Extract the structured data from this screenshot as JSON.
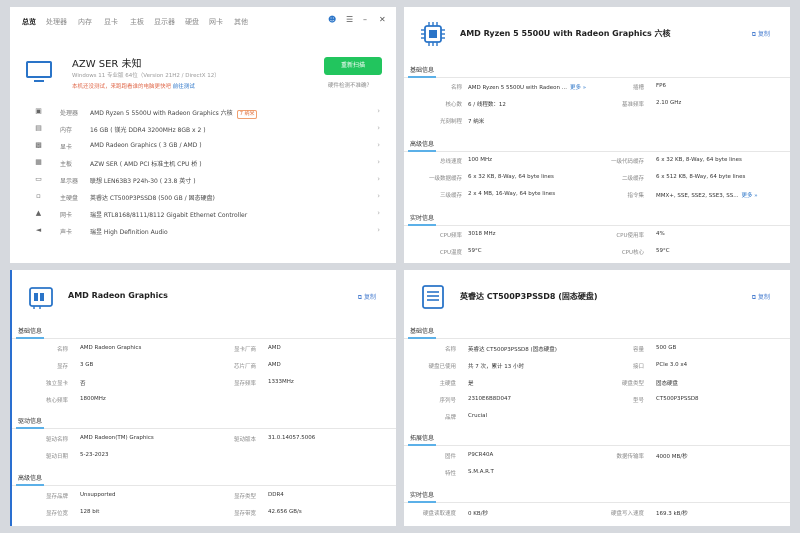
{
  "panel1": {
    "tabs": [
      "总览",
      "处理器",
      "内存",
      "显卡",
      "主板",
      "显示器",
      "硬盘",
      "网卡",
      "其他"
    ],
    "pc_name": "AZW SER 未知",
    "os": "Windows 11 专业版 64位（Version 21H2 / DirectX 12）",
    "warning": "本机还没测试，来跑跑看谁的电脑更快吧",
    "warning_link": "前往测试",
    "rescan_label": "重新扫描",
    "hwcheck": "硬件检测不准确？",
    "rows": [
      {
        "icon": "cpu-icon",
        "label": "处理器",
        "value": "AMD Ryzen 5 5500U with Radeon Graphics 六核",
        "badge": "7 纳米"
      },
      {
        "icon": "memory-icon",
        "label": "内存",
        "value": "16 GB ( 镁光 DDR4 3200MHz 8GB x 2 )"
      },
      {
        "icon": "gpu-icon",
        "label": "显卡",
        "value": "AMD Radeon Graphics ( 3 GB / AMD )"
      },
      {
        "icon": "motherboard-icon",
        "label": "主板",
        "value": "AZW SER ( AMD PCI 标准主机 CPU 桥 )"
      },
      {
        "icon": "display-icon",
        "label": "显示器",
        "value": "联想 LEN63B3 P24h-30 ( 23.8 英寸 )"
      },
      {
        "icon": "disk-icon",
        "label": "主硬盘",
        "value": "英睿达 CT500P3PSSD8 (500 GB / 固态硬盘)"
      },
      {
        "icon": "network-icon",
        "label": "网卡",
        "value": "瑞昱 RTL8168/8111/8112 Gigabit Ethernet Controller"
      },
      {
        "icon": "speaker-icon",
        "label": "声卡",
        "value": "瑞昱 High Definition Audio"
      }
    ]
  },
  "panel2": {
    "title": "AMD Ryzen 5 5500U with Radeon Graphics 六核",
    "copy": "复制",
    "sections": [
      {
        "title": "基础信息",
        "items": [
          {
            "k": "名称",
            "v": "AMD Ryzen 5 5500U with Radeon ...",
            "more": "更多 »"
          },
          {
            "k": "插槽",
            "v": "FP6"
          },
          {
            "k": "核心数",
            "v": "6 / 线程数：12"
          },
          {
            "k": "基准频率",
            "v": "2.10 GHz"
          },
          {
            "k": "光刻制程",
            "v": "7 纳米"
          }
        ]
      },
      {
        "title": "高级信息",
        "items": [
          {
            "k": "总线速度",
            "v": "100 MHz"
          },
          {
            "k": "一级代码缓存",
            "v": "6 x 32 KB, 8-Way, 64 byte lines"
          },
          {
            "k": "一级数据缓存",
            "v": "6 x 32 KB, 8-Way, 64 byte lines"
          },
          {
            "k": "二级缓存",
            "v": "6 x 512 KB, 8-Way, 64 byte lines"
          },
          {
            "k": "三级缓存",
            "v": "2 x 4 MB, 16-Way, 64 byte lines"
          },
          {
            "k": "指令集",
            "v": "MMX+, SSE, SSE2, SSE3, SS...",
            "more": "更多 »"
          }
        ]
      },
      {
        "title": "实时信息",
        "items": [
          {
            "k": "CPU频率",
            "v": "3018 MHz"
          },
          {
            "k": "CPU使用率",
            "v": "4%"
          },
          {
            "k": "CPU温度",
            "v": "59°C"
          },
          {
            "k": "CPU核心",
            "v": "59°C"
          }
        ]
      }
    ]
  },
  "panel3": {
    "title": "AMD Radeon Graphics",
    "copy": "复制",
    "sections": [
      {
        "title": "基础信息",
        "items": [
          {
            "k": "名称",
            "v": "AMD Radeon Graphics"
          },
          {
            "k": "显卡厂商",
            "v": "AMD"
          },
          {
            "k": "显存",
            "v": "3 GB"
          },
          {
            "k": "芯片厂商",
            "v": "AMD"
          },
          {
            "k": "独立显卡",
            "v": "否"
          },
          {
            "k": "显存频率",
            "v": "1333MHz"
          },
          {
            "k": "核心频率",
            "v": "1800MHz"
          }
        ]
      },
      {
        "title": "驱动信息",
        "items": [
          {
            "k": "驱动名称",
            "v": "AMD Radeon(TM) Graphics"
          },
          {
            "k": "驱动版本",
            "v": "31.0.14057.5006"
          },
          {
            "k": "驱动日期",
            "v": "5-23-2023"
          }
        ]
      },
      {
        "title": "高级信息",
        "items": [
          {
            "k": "显存品牌",
            "v": "Unsupported"
          },
          {
            "k": "显存类型",
            "v": "DDR4"
          },
          {
            "k": "显存位宽",
            "v": "128 bit"
          },
          {
            "k": "显存带宽",
            "v": "42.656 GB/s"
          }
        ]
      }
    ]
  },
  "panel4": {
    "title": "英睿达 CT500P3PSSD8 (固态硬盘)",
    "copy": "复制",
    "sections": [
      {
        "title": "基础信息",
        "items": [
          {
            "k": "名称",
            "v": "英睿达 CT500P3PSSD8 (固态硬盘)"
          },
          {
            "k": "容量",
            "v": "500 GB"
          },
          {
            "k": "硬盘已使用",
            "v": "共 7 次，累计 13 小时"
          },
          {
            "k": "接口",
            "v": "PCIe 3.0 x4"
          },
          {
            "k": "主硬盘",
            "v": "是"
          },
          {
            "k": "硬盘类型",
            "v": "固态硬盘"
          },
          {
            "k": "序列号",
            "v": "2310E6B8D047"
          },
          {
            "k": "型号",
            "v": "CT500P3PSSD8"
          },
          {
            "k": "品牌",
            "v": "Crucial"
          }
        ]
      },
      {
        "title": "拓展信息",
        "items": [
          {
            "k": "固件",
            "v": "P9CR40A"
          },
          {
            "k": "数据传输率",
            "v": "4000 MB/秒"
          },
          {
            "k": "特性",
            "v": "S.M.A.R.T"
          }
        ]
      },
      {
        "title": "实时信息",
        "items": [
          {
            "k": "硬盘读取速度",
            "v": "0 KB/秒"
          },
          {
            "k": "硬盘写入速度",
            "v": "169.3 kB/秒"
          }
        ]
      }
    ]
  }
}
